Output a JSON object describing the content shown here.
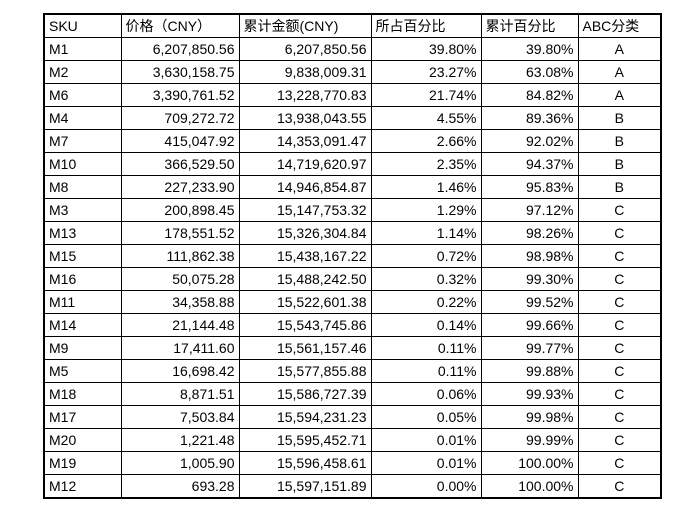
{
  "colors": {
    "background": "#ffffff",
    "border": "#000000",
    "text": "#000000"
  },
  "table": {
    "columns": [
      "SKU",
      "价格（CNY）",
      "累计金额(CNY)",
      "所占百分比",
      "累计百分比",
      "ABC分类"
    ],
    "rows": [
      [
        "M1",
        "6,207,850.56",
        "6,207,850.56",
        "39.80%",
        "39.80%",
        "A"
      ],
      [
        "M2",
        "3,630,158.75",
        "9,838,009.31",
        "23.27%",
        "63.08%",
        "A"
      ],
      [
        "M6",
        "3,390,761.52",
        "13,228,770.83",
        "21.74%",
        "84.82%",
        "A"
      ],
      [
        "M4",
        "709,272.72",
        "13,938,043.55",
        "4.55%",
        "89.36%",
        "B"
      ],
      [
        "M7",
        "415,047.92",
        "14,353,091.47",
        "2.66%",
        "92.02%",
        "B"
      ],
      [
        "M10",
        "366,529.50",
        "14,719,620.97",
        "2.35%",
        "94.37%",
        "B"
      ],
      [
        "M8",
        "227,233.90",
        "14,946,854.87",
        "1.46%",
        "95.83%",
        "B"
      ],
      [
        "M3",
        "200,898.45",
        "15,147,753.32",
        "1.29%",
        "97.12%",
        "C"
      ],
      [
        "M13",
        "178,551.52",
        "15,326,304.84",
        "1.14%",
        "98.26%",
        "C"
      ],
      [
        "M15",
        "111,862.38",
        "15,438,167.22",
        "0.72%",
        "98.98%",
        "C"
      ],
      [
        "M16",
        "50,075.28",
        "15,488,242.50",
        "0.32%",
        "99.30%",
        "C"
      ],
      [
        "M11",
        "34,358.88",
        "15,522,601.38",
        "0.22%",
        "99.52%",
        "C"
      ],
      [
        "M14",
        "21,144.48",
        "15,543,745.86",
        "0.14%",
        "99.66%",
        "C"
      ],
      [
        "M9",
        "17,411.60",
        "15,561,157.46",
        "0.11%",
        "99.77%",
        "C"
      ],
      [
        "M5",
        "16,698.42",
        "15,577,855.88",
        "0.11%",
        "99.88%",
        "C"
      ],
      [
        "M18",
        "8,871.51",
        "15,586,727.39",
        "0.06%",
        "99.93%",
        "C"
      ],
      [
        "M17",
        "7,503.84",
        "15,594,231.23",
        "0.05%",
        "99.98%",
        "C"
      ],
      [
        "M20",
        "1,221.48",
        "15,595,452.71",
        "0.01%",
        "99.99%",
        "C"
      ],
      [
        "M19",
        "1,005.90",
        "15,596,458.61",
        "0.01%",
        "100.00%",
        "C"
      ],
      [
        "M12",
        "693.28",
        "15,597,151.89",
        "0.00%",
        "100.00%",
        "C"
      ]
    ],
    "column_aligns": [
      "left",
      "right",
      "right",
      "right",
      "right",
      "center"
    ]
  }
}
